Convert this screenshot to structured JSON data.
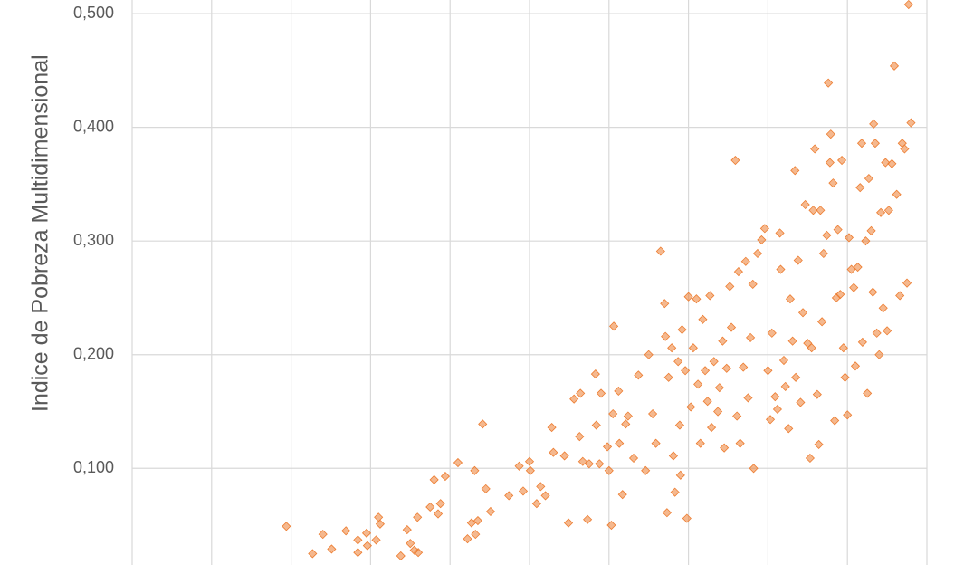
{
  "chart_data": {
    "type": "scatter",
    "y_label": "Indice de Pobreza Multidimensional",
    "x": [
      1.94,
      2.27,
      2.4,
      2.51,
      2.69,
      2.84,
      2.84,
      2.95,
      2.96,
      3.07,
      3.1,
      3.12,
      3.38,
      3.46,
      3.5,
      3.55,
      3.59,
      3.6,
      3.75,
      3.8,
      3.85,
      3.88,
      3.94,
      4.1,
      4.22,
      4.27,
      4.31,
      4.32,
      4.35,
      4.41,
      4.45,
      4.51,
      4.74,
      4.87,
      4.92,
      5.0,
      5.01,
      5.09,
      5.14,
      5.2,
      5.28,
      5.3,
      5.44,
      5.49,
      5.56,
      5.63,
      5.64,
      5.67,
      5.73,
      5.75,
      5.83,
      5.84,
      5.88,
      5.9,
      5.98,
      6.0,
      6.03,
      6.05,
      6.06,
      6.12,
      6.13,
      6.17,
      6.21,
      6.24,
      6.31,
      6.37,
      6.46,
      6.5,
      6.55,
      6.59,
      6.65,
      6.7,
      6.71,
      6.73,
      6.75,
      6.79,
      6.81,
      6.83,
      6.87,
      6.89,
      6.9,
      6.92,
      6.96,
      6.98,
      7.0,
      7.03,
      7.06,
      7.1,
      7.12,
      7.15,
      7.18,
      7.21,
      7.24,
      7.27,
      7.29,
      7.32,
      7.37,
      7.39,
      7.43,
      7.45,
      7.48,
      7.52,
      7.54,
      7.59,
      7.61,
      7.63,
      7.65,
      7.69,
      7.72,
      7.75,
      7.78,
      7.81,
      7.82,
      7.87,
      7.92,
      7.96,
      8.0,
      8.03,
      8.05,
      8.09,
      8.12,
      8.15,
      8.16,
      8.2,
      8.22,
      8.26,
      8.28,
      8.31,
      8.34,
      8.35,
      8.38,
      8.41,
      8.44,
      8.47,
      8.5,
      8.53,
      8.55,
      8.57,
      8.59,
      8.62,
      8.64,
      8.66,
      8.68,
      8.7,
      8.74,
      8.76,
      8.78,
      8.79,
      8.82,
      8.84,
      8.86,
      8.88,
      8.91,
      8.93,
      8.95,
      8.97,
      9.0,
      9.02,
      9.05,
      9.08,
      9.1,
      9.13,
      9.16,
      9.18,
      9.19,
      9.23,
      9.25,
      9.27,
      9.3,
      9.32,
      9.33,
      9.35,
      9.37,
      9.4,
      9.42,
      9.45,
      9.48,
      9.5,
      9.52,
      9.56,
      9.59,
      9.62,
      9.66,
      9.69,
      9.72,
      9.75,
      9.77,
      9.8
    ],
    "series": [
      {
        "color": "#ed7d31",
        "values": [
          0.049,
          0.025,
          0.042,
          0.029,
          0.045,
          0.037,
          0.026,
          0.043,
          0.032,
          0.037,
          0.057,
          0.051,
          0.023,
          0.046,
          0.034,
          0.028,
          0.057,
          0.026,
          0.066,
          0.09,
          0.06,
          0.069,
          0.093,
          0.105,
          0.038,
          0.052,
          0.098,
          0.042,
          0.054,
          0.139,
          0.082,
          0.062,
          0.076,
          0.102,
          0.08,
          0.106,
          0.098,
          0.069,
          0.084,
          0.076,
          0.136,
          0.114,
          0.111,
          0.052,
          0.161,
          0.128,
          0.166,
          0.106,
          0.055,
          0.104,
          0.183,
          0.138,
          0.104,
          0.166,
          0.119,
          0.098,
          0.05,
          0.148,
          0.225,
          0.168,
          0.122,
          0.077,
          0.139,
          0.146,
          0.109,
          0.182,
          0.098,
          0.2,
          0.148,
          0.122,
          0.291,
          0.245,
          0.216,
          0.061,
          0.18,
          0.206,
          0.111,
          0.079,
          0.194,
          0.138,
          0.094,
          0.222,
          0.186,
          0.056,
          0.251,
          0.154,
          0.206,
          0.249,
          0.174,
          0.122,
          0.231,
          0.186,
          0.159,
          0.252,
          0.136,
          0.194,
          0.15,
          0.171,
          0.212,
          0.118,
          0.188,
          0.26,
          0.224,
          0.371,
          0.146,
          0.273,
          0.122,
          0.189,
          0.282,
          0.162,
          0.215,
          0.262,
          0.1,
          0.289,
          0.301,
          0.311,
          0.186,
          0.143,
          0.219,
          0.163,
          0.152,
          0.307,
          0.275,
          0.195,
          0.172,
          0.135,
          0.249,
          0.212,
          0.362,
          0.18,
          0.283,
          0.158,
          0.237,
          0.332,
          0.21,
          0.109,
          0.206,
          0.327,
          0.381,
          0.165,
          0.121,
          0.327,
          0.229,
          0.289,
          0.305,
          0.439,
          0.369,
          0.394,
          0.351,
          0.142,
          0.25,
          0.31,
          0.253,
          0.371,
          0.206,
          0.18,
          0.147,
          0.303,
          0.275,
          0.259,
          0.19,
          0.277,
          0.347,
          0.386,
          0.211,
          0.3,
          0.166,
          0.355,
          0.309,
          0.255,
          0.403,
          0.386,
          0.219,
          0.2,
          0.325,
          0.241,
          0.369,
          0.221,
          0.327,
          0.368,
          0.454,
          0.341,
          0.252,
          0.386,
          0.381,
          0.263,
          0.508,
          0.404
        ]
      }
    ],
    "xlim": [
      0,
      10
    ],
    "xticks": [
      0,
      1,
      2,
      3,
      4,
      5,
      6,
      7,
      8,
      9,
      10
    ],
    "ylim": [
      0.015,
      0.512
    ],
    "yticks": [
      {
        "value": 0.1,
        "label": "0,100"
      },
      {
        "value": 0.2,
        "label": "0,200"
      },
      {
        "value": 0.3,
        "label": "0,300"
      },
      {
        "value": 0.4,
        "label": "0,400"
      },
      {
        "value": 0.5,
        "label": "0,500"
      }
    ],
    "grid": true
  }
}
